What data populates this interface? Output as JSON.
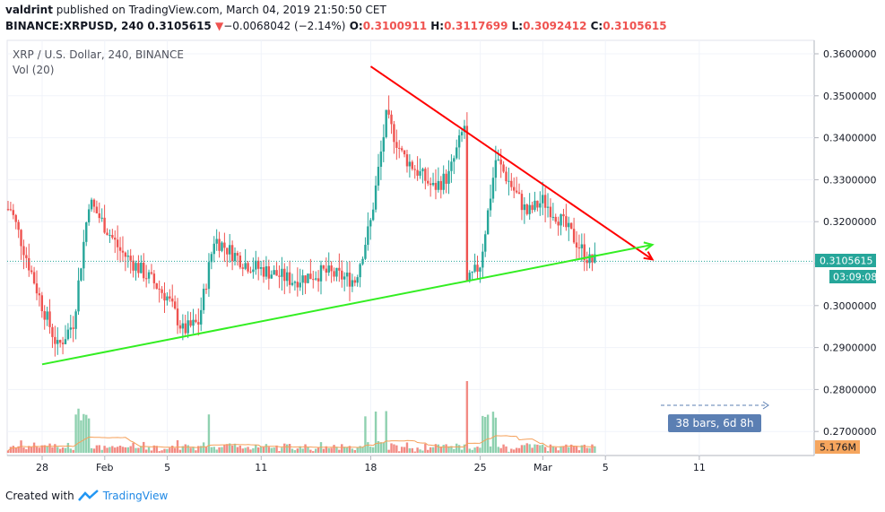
{
  "header": {
    "author": "valdrint",
    "published_text": " published on TradingView.com, March 04, 2019 21:50:50 CET",
    "symbol_line": "BINANCE:XRPUSD, 240",
    "last": "0.3105615",
    "change_arrow": "▼",
    "change": "−0.0068042 (−2.14%)",
    "o_label": "O:",
    "o": "0.3100911",
    "h_label": "H:",
    "h": "0.3117699",
    "l_label": "L:",
    "l": "0.3092412",
    "c_label": "C:",
    "c": "0.3105615"
  },
  "legend": {
    "title": "XRP / U.S. Dollar, 240, BINANCE",
    "volume": "Vol (20)"
  },
  "price_tag": "0.3105615",
  "countdown": "03:09:08",
  "volume_tag": "5.176M",
  "measure_label": "38 bars, 6d 8h",
  "footer": {
    "created_with": "Created with",
    "brand": "TradingView"
  },
  "colors": {
    "up": "#26a69a",
    "down": "#ef5350",
    "up_vol": "#8fd1b0",
    "down_vol": "#f28b84",
    "resistance": "#ff0000",
    "support": "#33ee22",
    "measure": "#5b7fb3",
    "ma": "#f5a05a"
  },
  "chart_data": {
    "type": "candlestick",
    "symbol": "XRPUSD",
    "timeframe": "240",
    "ylim": [
      0.2655,
      0.3615
    ],
    "y_ticks": [
      "0.3600000",
      "0.3500000",
      "0.3400000",
      "0.3300000",
      "0.3200000",
      "0.3100000",
      "0.3000000",
      "0.2900000",
      "0.2800000",
      "0.2700000"
    ],
    "x_ticks": [
      "28",
      "Feb",
      "5",
      "11",
      "18",
      "25",
      "Mar",
      "5",
      "11"
    ],
    "last_price": 0.3105615,
    "last_volume": "5.176M",
    "trendlines": [
      {
        "name": "resistance",
        "color": "#ff0000",
        "from": [
          "Feb 18",
          0.357
        ],
        "to": [
          "Mar 8",
          0.311
        ]
      },
      {
        "name": "support",
        "color": "#33ee22",
        "from": [
          "Jan 28",
          0.286
        ],
        "to": [
          "Mar 8",
          0.3145
        ]
      }
    ],
    "date_range_measure": "38 bars, 6d 8h",
    "ohlc_anchor_points": [
      [
        "Jan 26",
        0.323
      ],
      [
        "Jan 28",
        0.3
      ],
      [
        "Jan 29",
        0.29
      ],
      [
        "Jan 30",
        0.296
      ],
      [
        "Jan 31",
        0.325
      ],
      [
        "Feb 2",
        0.313
      ],
      [
        "Feb 4",
        0.306
      ],
      [
        "Feb 5",
        0.302
      ],
      [
        "Feb 6",
        0.294
      ],
      [
        "Feb 7",
        0.296
      ],
      [
        "Feb 8",
        0.316
      ],
      [
        "Feb 10",
        0.31
      ],
      [
        "Feb 13",
        0.306
      ],
      [
        "Feb 15",
        0.308
      ],
      [
        "Feb 17",
        0.306
      ],
      [
        "Feb 18",
        0.32
      ],
      [
        "Feb 19",
        0.345
      ],
      [
        "Feb 20",
        0.336
      ],
      [
        "Feb 22",
        0.328
      ],
      [
        "Feb 23",
        0.331
      ],
      [
        "Feb 24",
        0.343
      ],
      [
        "Feb 24",
        0.304
      ],
      [
        "Feb 25",
        0.31
      ],
      [
        "Feb 26",
        0.335
      ],
      [
        "Feb 28",
        0.322
      ],
      [
        "Mar 1",
        0.325
      ],
      [
        "Mar 2",
        0.321
      ],
      [
        "Mar 3",
        0.316
      ],
      [
        "Mar 4",
        0.3106
      ]
    ]
  }
}
